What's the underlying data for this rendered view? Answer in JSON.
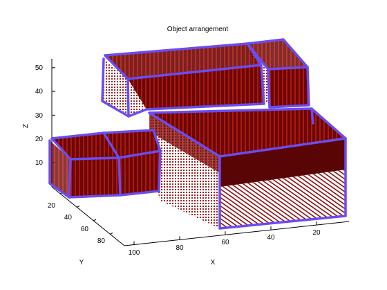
{
  "chart_data": {
    "type": "scatter3d",
    "title": "Object arrangement",
    "xlabel": "X",
    "ylabel": "Y",
    "zlabel": "Z",
    "x_ticks": [
      "100",
      "80",
      "60",
      "40",
      "20"
    ],
    "y_ticks": [
      "20",
      "40",
      "60",
      "80"
    ],
    "z_ticks": [
      "10",
      "20",
      "30",
      "40",
      "50"
    ],
    "xlim": [
      0,
      100
    ],
    "ylim": [
      0,
      90
    ],
    "zlim": [
      0,
      55
    ],
    "grid": false,
    "colors": {
      "point": "#8b0a0a",
      "point_light": "#c23a2a",
      "point_dark": "#4a0404",
      "box_edge": "#6a4cf0"
    },
    "objects": [
      {
        "id": "box-a",
        "x": [
          30,
          100
        ],
        "y": [
          0,
          20
        ],
        "z": [
          30,
          50
        ]
      },
      {
        "id": "box-b",
        "x": [
          0,
          30
        ],
        "y": [
          0,
          20
        ],
        "z": [
          30,
          50
        ]
      },
      {
        "id": "box-c",
        "x": [
          0,
          60
        ],
        "y": [
          20,
          90
        ],
        "z": [
          0,
          30
        ]
      },
      {
        "id": "box-d",
        "x": [
          70,
          100
        ],
        "y": [
          30,
          90
        ],
        "z": [
          0,
          20
        ]
      },
      {
        "id": "box-e",
        "x": [
          100,
          130
        ],
        "y": [
          30,
          90
        ],
        "z": [
          0,
          20
        ]
      }
    ]
  }
}
